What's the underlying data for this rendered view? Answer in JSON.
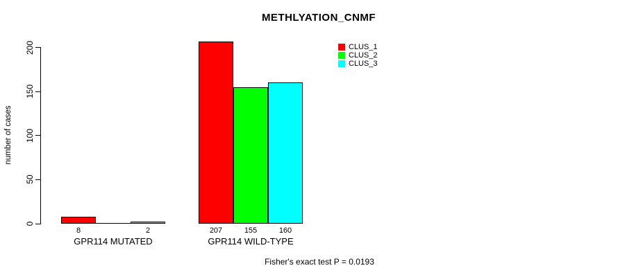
{
  "chart_data": {
    "type": "bar",
    "title": "METHLYATION_CNMF",
    "ylabel": "number of cases",
    "yticks": [
      0,
      50,
      100,
      150,
      200
    ],
    "ylim": [
      0,
      207
    ],
    "grid": false,
    "legend_position": "top-right",
    "categories": [
      "GPR114 MUTATED",
      "GPR114 WILD-TYPE"
    ],
    "series": [
      {
        "name": "CLUS_1",
        "color": "#ff0000",
        "values": [
          8,
          207
        ]
      },
      {
        "name": "CLUS_2",
        "color": "#00ff00",
        "values": [
          0,
          155
        ]
      },
      {
        "name": "CLUS_3",
        "color": "#00ffff",
        "values": [
          2,
          160
        ]
      }
    ],
    "bar_value_labels": [
      [
        "8",
        "",
        "2"
      ],
      [
        "207",
        "155",
        "160"
      ]
    ],
    "legend": [
      {
        "label": "CLUS_1",
        "color": "#ff0000"
      },
      {
        "label": "CLUS_2",
        "color": "#00ff00"
      },
      {
        "label": "CLUS_3",
        "color": "#00ffff"
      }
    ],
    "annotation": "Fisher's exact test P = 0.0193",
    "axis_color": "#000000",
    "background_color": "#ffffff"
  }
}
